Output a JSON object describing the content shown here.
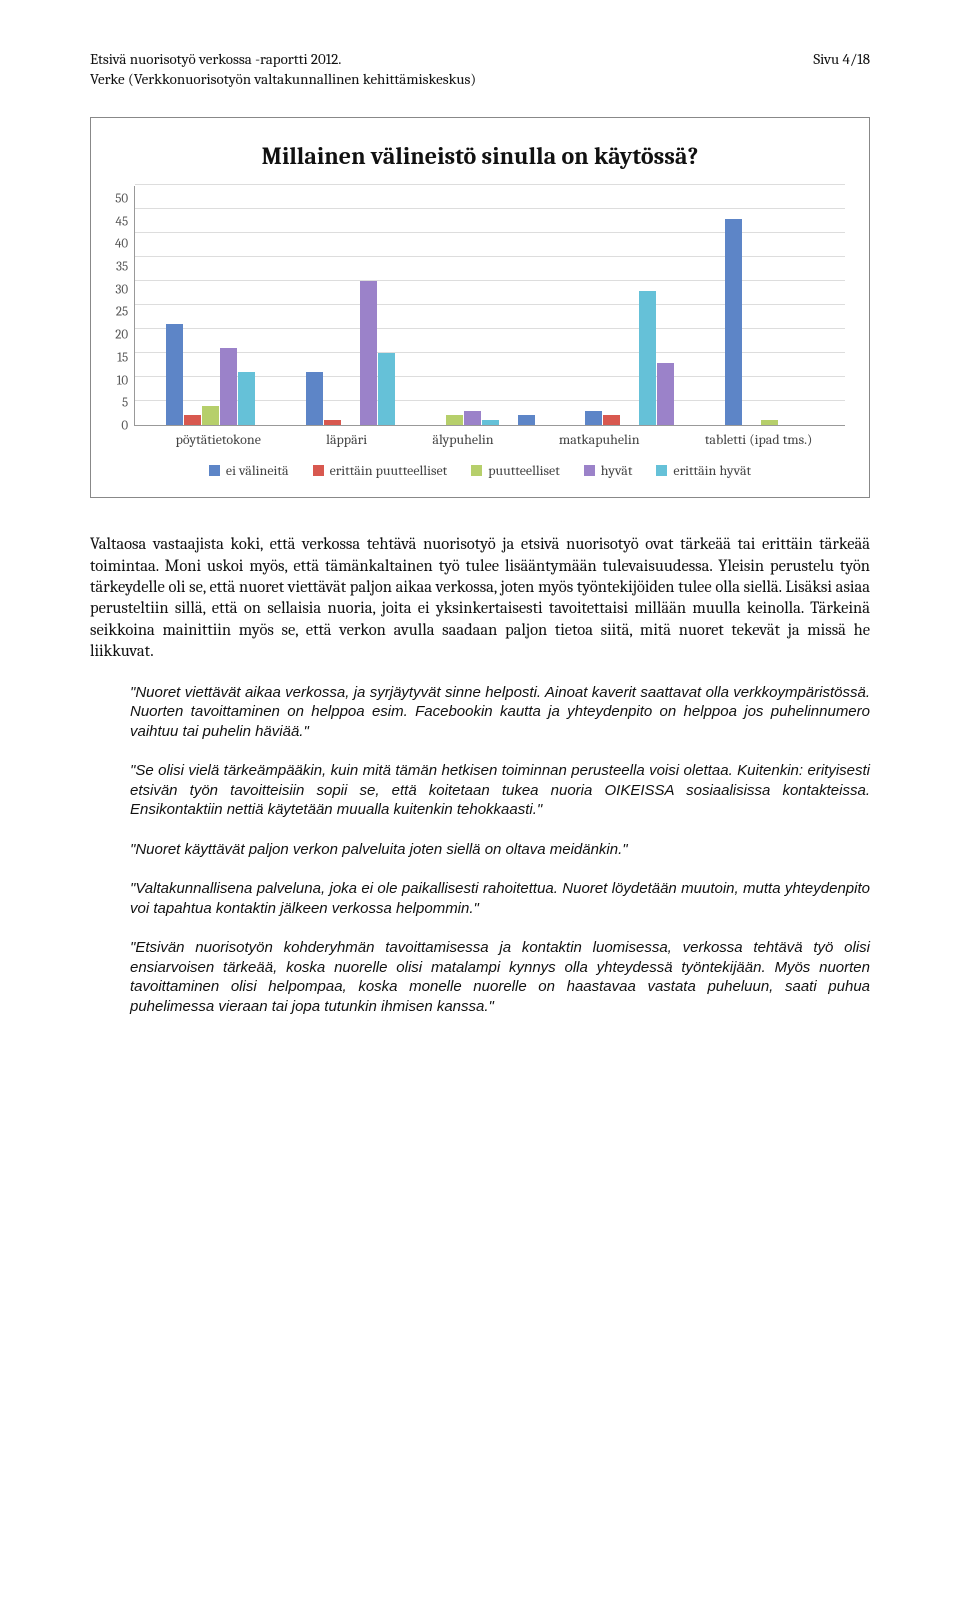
{
  "header": {
    "line1": "Etsivä nuorisotyö verkossa -raportti 2012.",
    "line2": "Verke (Verkkonuorisotyön valtakunnallinen kehittämiskeskus)",
    "page": "Sivu 4/18"
  },
  "chart": {
    "type": "bar",
    "title": "Millainen välineistö sinulla on käytössä?",
    "ylim": [
      0,
      50
    ],
    "ytick_step": 5,
    "grid_color": "#dddddd",
    "axis_color": "#999999",
    "background_color": "#ffffff",
    "categories": [
      "pöytätietokone",
      "läppäri",
      "älypuhelin",
      "matkapuhelin",
      "tabletti (ipad tms.)"
    ],
    "series": [
      {
        "label": "ei välineitä",
        "color": "#5d85c7",
        "values": [
          21,
          11,
          2,
          3,
          43
        ]
      },
      {
        "label": "erittäin puutteelliset",
        "color": "#d8584f",
        "values": [
          2,
          1,
          0,
          2,
          0
        ]
      },
      {
        "label": "puutteelliset",
        "color": "#b6cf6b",
        "values": [
          4,
          0,
          2,
          0,
          1
        ]
      },
      {
        "label": "hyvät",
        "color": "#9b82c9",
        "values": [
          16,
          30,
          3,
          13,
          0
        ]
      },
      {
        "label": "erittäin hyvät",
        "color": "#65c1d8",
        "values": [
          11,
          15,
          1,
          28,
          0
        ]
      }
    ],
    "legend_visual_order": [
      0,
      1,
      2,
      3,
      4
    ],
    "bar_group_order": [
      0,
      1,
      2,
      3,
      4
    ],
    "special_group_series_order": {
      "2": [
        2,
        3,
        4,
        1,
        0
      ],
      "3": [
        0,
        1,
        2,
        4,
        3
      ]
    }
  },
  "body_text": "Valtaosa vastaajista koki, että verkossa tehtävä nuorisotyö ja etsivä nuorisotyö ovat tärkeää tai erittäin tärkeää toimintaa. Moni uskoi myös, että tämänkaltainen työ tulee lisääntymään tulevaisuudessa. Yleisin perustelu työn tärkeydelle oli se, että nuoret viettävät paljon aikaa verkossa, joten myös työntekijöiden tulee olla siellä. Lisäksi asiaa perusteltiin sillä, että on sellaisia nuoria, joita ei yksinkertaisesti tavoitettaisi millään muulla keinolla. Tärkeinä seikkoina mainittiin myös se, että verkon avulla saadaan paljon tietoa siitä, mitä nuoret tekevät ja missä he liikkuvat.",
  "quotes": [
    "\"Nuoret viettävät aikaa verkossa, ja syrjäytyvät sinne helposti. Ainoat kaverit saattavat olla verkkoympäristössä. Nuorten tavoittaminen on helppoa esim. Facebookin kautta ja yhteydenpito on helppoa jos puhelinnumero vaihtuu tai puhelin häviää.\"",
    "\"Se olisi vielä tärkeämpääkin, kuin mitä tämän hetkisen toiminnan perusteella voisi olettaa. Kuitenkin: erityisesti etsivän työn tavoitteisiin sopii se, että koitetaan tukea nuoria OIKEISSA sosiaalisissa kontakteissa. Ensikontaktiin nettiä käytetään muualla kuitenkin tehokkaasti.\"",
    "\"Nuoret käyttävät paljon verkon palveluita joten siellä on oltava meidänkin.\"",
    "\"Valtakunnallisena palveluna, joka ei ole paikallisesti rahoitettua. Nuoret löydetään muutoin, mutta yhteydenpito voi tapahtua kontaktin jälkeen verkossa helpommin.\"",
    "\"Etsivän nuorisotyön kohderyhmän tavoittamisessa ja kontaktin luomisessa, verkossa tehtävä työ olisi ensiarvoisen tärkeää, koska nuorelle olisi matalampi kynnys olla yhteydessä työntekijään. Myös nuorten tavoittaminen olisi helpompaa, koska monelle nuorelle on haastavaa vastata puheluun, saati puhua puhelimessa vieraan tai jopa tutunkin ihmisen kanssa.\""
  ]
}
